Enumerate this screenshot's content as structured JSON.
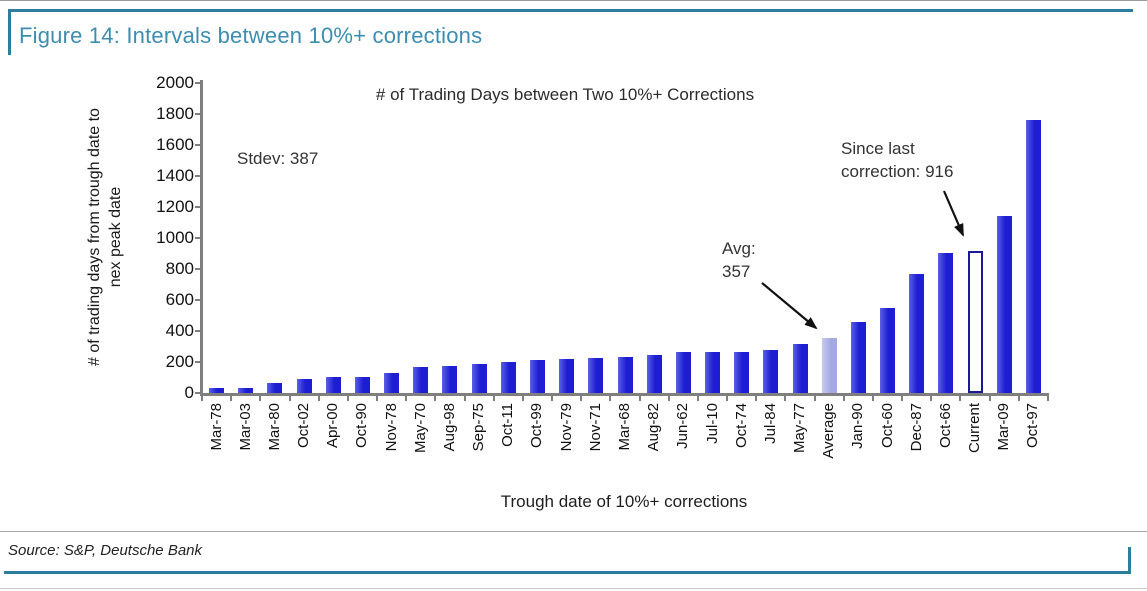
{
  "figure": {
    "title": "Figure 14: Intervals between 10%+ corrections",
    "source": "Source: S&P, Deutsche Bank",
    "accent_color": "#2c7d9e",
    "title_color": "#3d8db0"
  },
  "chart_data": {
    "type": "bar",
    "title": "# of Trading Days between Two 10%+ Corrections",
    "xlabel": "Trough date of 10%+ corrections",
    "ylabel_line1": "# of trading days from trough date to",
    "ylabel_line2": "nex peak date",
    "ylim": [
      0,
      2000
    ],
    "yticks": [
      0,
      200,
      400,
      600,
      800,
      1000,
      1200,
      1400,
      1600,
      1800,
      2000
    ],
    "grid": false,
    "legend": "none",
    "categories": [
      "Mar-78",
      "Mar-03",
      "Mar-80",
      "Oct-02",
      "Apr-00",
      "Oct-90",
      "Nov-78",
      "May-70",
      "Aug-98",
      "Sep-75",
      "Oct-11",
      "Oct-99",
      "Nov-79",
      "Nov-71",
      "Mar-68",
      "Aug-82",
      "Jun-62",
      "Jul-10",
      "Oct-74",
      "Jul-84",
      "May-77",
      "Average",
      "Jan-90",
      "Oct-60",
      "Dec-87",
      "Oct-66",
      "Current",
      "Mar-09",
      "Oct-97"
    ],
    "values": [
      35,
      35,
      65,
      90,
      105,
      105,
      130,
      170,
      175,
      190,
      200,
      215,
      220,
      225,
      235,
      245,
      265,
      265,
      265,
      280,
      315,
      357,
      455,
      550,
      770,
      900,
      916,
      1140,
      1760
    ],
    "bar_styles": [
      "normal",
      "normal",
      "normal",
      "normal",
      "normal",
      "normal",
      "normal",
      "normal",
      "normal",
      "normal",
      "normal",
      "normal",
      "normal",
      "normal",
      "normal",
      "normal",
      "normal",
      "normal",
      "normal",
      "normal",
      "normal",
      "light",
      "normal",
      "normal",
      "normal",
      "normal",
      "outline",
      "normal",
      "normal"
    ],
    "colors": {
      "bar": "#1d1dd2",
      "bar_light": "#a4aae1",
      "bar_outline_border": "#1a1a96",
      "axis": "#7f7f7f"
    },
    "notes": {
      "stdev": "Stdev: 387",
      "avg_line1": "Avg:",
      "avg_line2": "357",
      "since_line1": "Since last",
      "since_line2": "correction: 916"
    }
  }
}
